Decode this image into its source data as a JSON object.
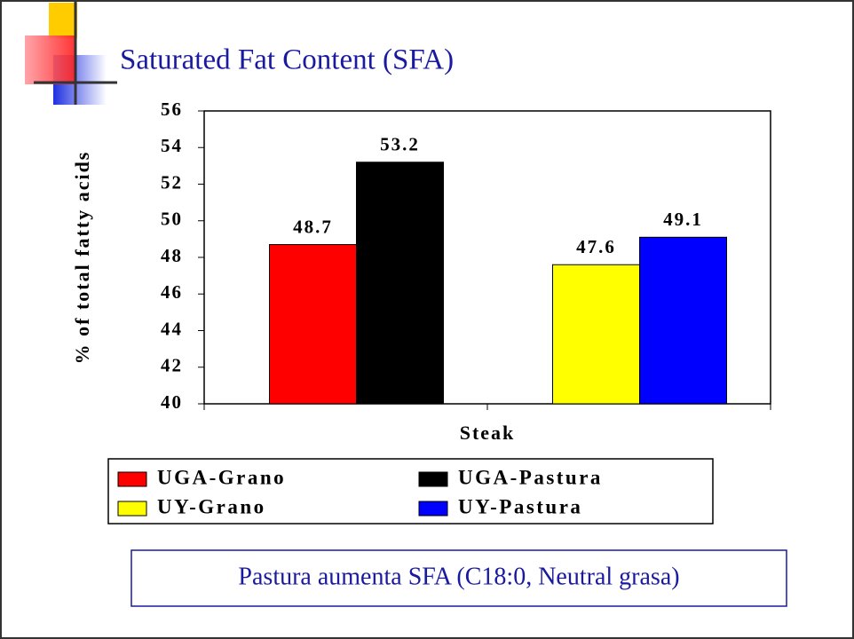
{
  "chart_data": {
    "type": "bar",
    "title": "Saturated Fat Content (SFA)",
    "y_label": "% of total fatty acids",
    "x_label": "Steak",
    "categories": [
      null,
      null
    ],
    "series": [
      {
        "name": "UGA-Grano",
        "color": "#ff0000",
        "values": [
          48.7,
          null
        ]
      },
      {
        "name": "UGA-Pastura",
        "color": "#000000",
        "values": [
          53.2,
          null
        ]
      },
      {
        "name": "UY-Grano",
        "color": "#ffff00",
        "values": [
          null,
          47.6
        ]
      },
      {
        "name": "UY-Pastura",
        "color": "#0000ff",
        "values": [
          null,
          49.1
        ]
      }
    ],
    "ylim": [
      40,
      56
    ],
    "yticks": [
      40,
      42,
      44,
      46,
      48,
      50,
      52,
      54,
      56
    ],
    "grid": false,
    "note": "Pastura aumenta SFA (C18:0, Neutral grasa)"
  }
}
